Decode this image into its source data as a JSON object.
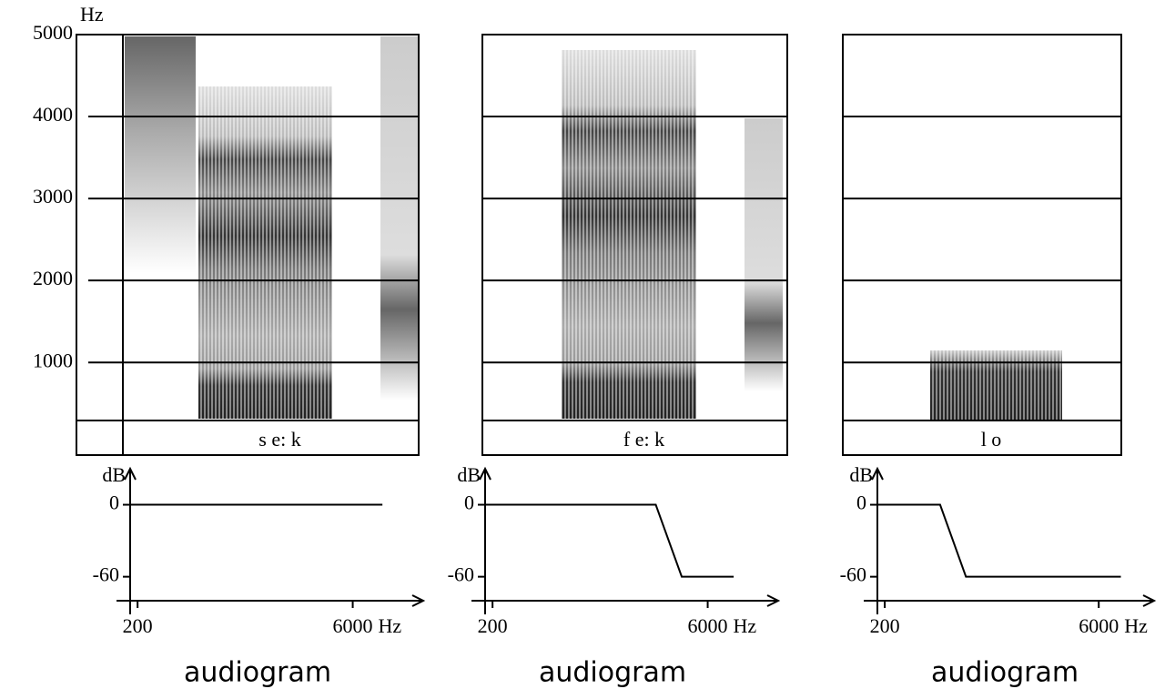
{
  "spectrogram_axis": {
    "unit": "Hz",
    "ylim": [
      -130,
      5000
    ],
    "yticks": [
      5000,
      4000,
      3000,
      2000,
      1000
    ]
  },
  "panels": [
    {
      "transcription": "s e: k",
      "audiogram": {
        "type": "line",
        "y_unit": "dB",
        "x_unit": "Hz",
        "xlim": [
          0,
          7900
        ],
        "ylim": [
          -80,
          30
        ],
        "xticks": [
          200,
          6000
        ],
        "yticks": [
          0,
          -60
        ],
        "x": [
          0,
          6800
        ],
        "values": [
          0,
          0
        ],
        "color": "#000000",
        "caption": "audiogram"
      }
    },
    {
      "transcription": "f e: k",
      "audiogram": {
        "type": "line",
        "y_unit": "dB",
        "x_unit": "Hz",
        "xlim": [
          0,
          7900
        ],
        "ylim": [
          -80,
          30
        ],
        "xticks": [
          200,
          6000
        ],
        "yticks": [
          0,
          -60
        ],
        "x": [
          0,
          4600,
          5300,
          6700
        ],
        "values": [
          0,
          0,
          -60,
          -60
        ],
        "color": "#000000",
        "caption": "audiogram"
      }
    },
    {
      "transcription": "l o",
      "audiogram": {
        "type": "line",
        "y_unit": "dB",
        "x_unit": "Hz",
        "xlim": [
          0,
          7500
        ],
        "ylim": [
          -80,
          30
        ],
        "xticks": [
          200,
          6000
        ],
        "yticks": [
          0,
          -60
        ],
        "x": [
          0,
          1700,
          2400,
          6600
        ],
        "values": [
          0,
          0,
          -60,
          -60
        ],
        "color": "#000000",
        "caption": "audiogram"
      }
    }
  ]
}
